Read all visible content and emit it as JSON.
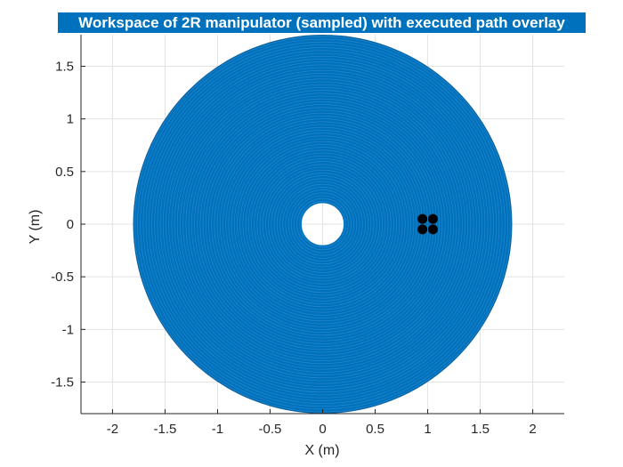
{
  "chart_data": {
    "type": "scatter",
    "title": "Workspace of 2R manipulator (sampled) with executed path overlay",
    "xlabel": "X (m)",
    "ylabel": "Y (m)",
    "xlim": [
      -2.3,
      2.3
    ],
    "ylim": [
      -1.8,
      1.8
    ],
    "xticks": [
      -2,
      -1.5,
      -1,
      -0.5,
      0,
      0.5,
      1,
      1.5,
      2
    ],
    "xtick_labels": [
      "-2",
      "-1.5",
      "-1",
      "-0.5",
      "0",
      "0.5",
      "1",
      "1.5",
      "2"
    ],
    "yticks": [
      -1.5,
      -1,
      -0.5,
      0,
      0.5,
      1,
      1.5
    ],
    "ytick_labels": [
      "-1.5",
      "-1",
      "-0.5",
      "0",
      "0.5",
      "1",
      "1.5"
    ],
    "grid": true,
    "workspace": {
      "name": "workspace (sampled)",
      "shape": "annulus",
      "center": [
        0,
        0
      ],
      "outer_radius": 1.8,
      "inner_radius": 0.2,
      "color": "#0072bd"
    },
    "path": {
      "name": "executed path",
      "color": "#000000",
      "x": [
        0.95,
        1.05,
        0.95,
        1.05
      ],
      "y": [
        0.05,
        0.05,
        -0.05,
        -0.05
      ]
    }
  }
}
